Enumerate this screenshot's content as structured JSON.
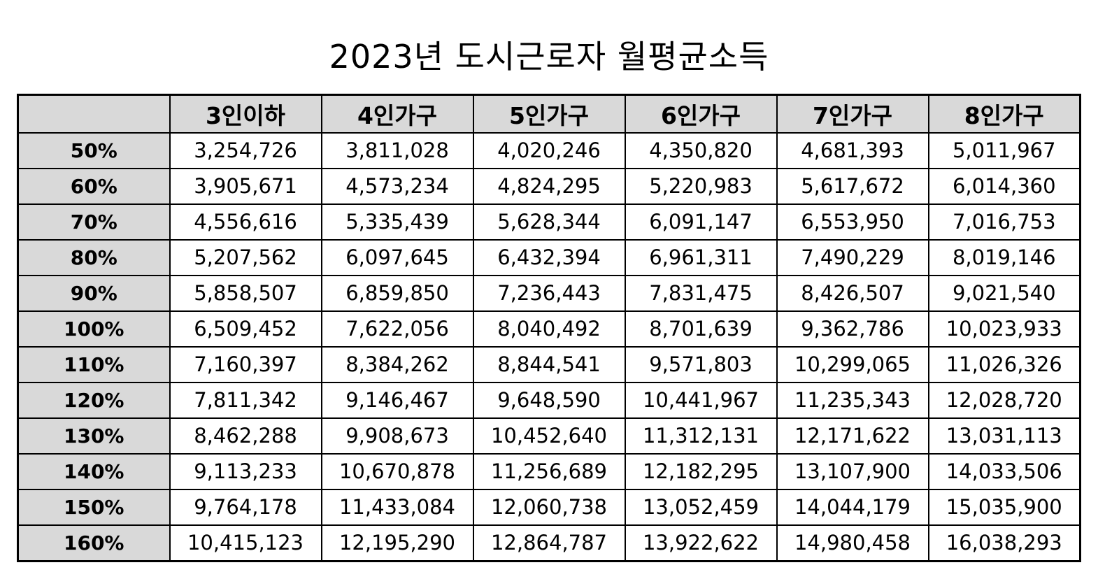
{
  "title": "2023년 도시근로자 월평균소득",
  "table": {
    "corner": "",
    "columns": [
      "3인이하",
      "4인가구",
      "5인가구",
      "6인가구",
      "7인가구",
      "8인가구"
    ],
    "rows": [
      {
        "label": "50%",
        "values": [
          "3,254,726",
          "3,811,028",
          "4,020,246",
          "4,350,820",
          "4,681,393",
          "5,011,967"
        ]
      },
      {
        "label": "60%",
        "values": [
          "3,905,671",
          "4,573,234",
          "4,824,295",
          "5,220,983",
          "5,617,672",
          "6,014,360"
        ]
      },
      {
        "label": "70%",
        "values": [
          "4,556,616",
          "5,335,439",
          "5,628,344",
          "6,091,147",
          "6,553,950",
          "7,016,753"
        ]
      },
      {
        "label": "80%",
        "values": [
          "5,207,562",
          "6,097,645",
          "6,432,394",
          "6,961,311",
          "7,490,229",
          "8,019,146"
        ]
      },
      {
        "label": "90%",
        "values": [
          "5,858,507",
          "6,859,850",
          "7,236,443",
          "7,831,475",
          "8,426,507",
          "9,021,540"
        ]
      },
      {
        "label": "100%",
        "values": [
          "6,509,452",
          "7,622,056",
          "8,040,492",
          "8,701,639",
          "9,362,786",
          "10,023,933"
        ]
      },
      {
        "label": "110%",
        "values": [
          "7,160,397",
          "8,384,262",
          "8,844,541",
          "9,571,803",
          "10,299,065",
          "11,026,326"
        ]
      },
      {
        "label": "120%",
        "values": [
          "7,811,342",
          "9,146,467",
          "9,648,590",
          "10,441,967",
          "11,235,343",
          "12,028,720"
        ]
      },
      {
        "label": "130%",
        "values": [
          "8,462,288",
          "9,908,673",
          "10,452,640",
          "11,312,131",
          "12,171,622",
          "13,031,113"
        ]
      },
      {
        "label": "140%",
        "values": [
          "9,113,233",
          "10,670,878",
          "11,256,689",
          "12,182,295",
          "13,107,900",
          "14,033,506"
        ]
      },
      {
        "label": "150%",
        "values": [
          "9,764,178",
          "11,433,084",
          "12,060,738",
          "13,052,459",
          "14,044,179",
          "15,035,900"
        ]
      },
      {
        "label": "160%",
        "values": [
          "10,415,123",
          "12,195,290",
          "12,864,787",
          "13,922,622",
          "14,980,458",
          "16,038,293"
        ]
      }
    ]
  },
  "colors": {
    "header_background": "#d9d9d9",
    "cell_background": "#ffffff",
    "border": "#000000"
  }
}
